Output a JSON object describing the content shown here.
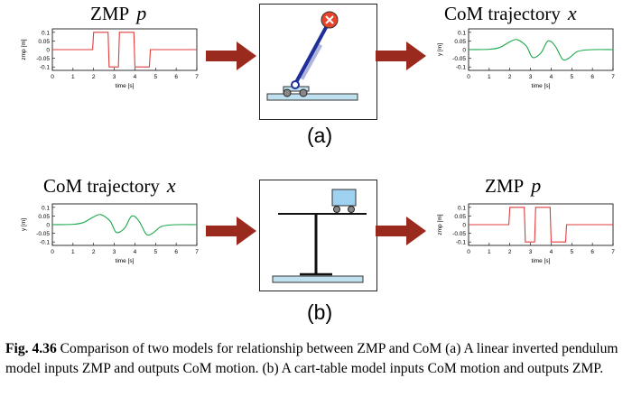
{
  "row_a": {
    "input": {
      "title_text": "ZMP",
      "title_var": "p",
      "ylabel": "zmp [m]",
      "xlabel": "time [s]",
      "color": "#e23b3b",
      "xticks": [
        "0",
        "1",
        "2",
        "3",
        "4",
        "5",
        "6",
        "7"
      ],
      "yticks": [
        "0.1",
        "0.05",
        "0",
        "-0.05",
        "-0.1"
      ]
    },
    "model_icon": "inverted-pendulum-icon",
    "output": {
      "title_text": "CoM trajectory",
      "title_var": "x",
      "ylabel": "y [m]",
      "xlabel": "time [s]",
      "color": "#1aa84a",
      "xticks": [
        "0",
        "1",
        "2",
        "3",
        "4",
        "5",
        "6",
        "7"
      ],
      "yticks": [
        "0.1",
        "0.05",
        "0",
        "-0.05",
        "-0.1"
      ]
    },
    "label": "(a)"
  },
  "row_b": {
    "input": {
      "title_text": "CoM trajectory",
      "title_var": "x",
      "ylabel": "y [m]",
      "xlabel": "time [s]",
      "color": "#1aa84a",
      "xticks": [
        "0",
        "1",
        "2",
        "3",
        "4",
        "5",
        "6",
        "7"
      ],
      "yticks": [
        "0.1",
        "0.05",
        "0",
        "-0.05",
        "-0.1"
      ]
    },
    "model_icon": "cart-table-icon",
    "output": {
      "title_text": "ZMP",
      "title_var": "p",
      "ylabel": "zmp [m]",
      "xlabel": "time [s]",
      "color": "#e23b3b",
      "xticks": [
        "0",
        "1",
        "2",
        "3",
        "4",
        "5",
        "6",
        "7"
      ],
      "yticks": [
        "0.1",
        "0.05",
        "0",
        "-0.05",
        "-0.1"
      ]
    },
    "label": "(b)"
  },
  "caption": {
    "fig_label": "Fig. 4.36",
    "text": "Comparison of two models for relationship between ZMP and CoM (a) A linear inverted pendulum model inputs ZMP and outputs CoM motion. (b) A cart-table model inputs CoM motion and outputs ZMP."
  },
  "colors": {
    "arrow": "#9b2a1e",
    "platform": "#bfe0ef",
    "pendulum": "#1f2f9a",
    "cart": "#9fd2f0",
    "mass": "#e8442c"
  },
  "chart_data": [
    {
      "type": "line",
      "name": "zmp-a",
      "x": [
        0,
        1.95,
        2.0,
        2.7,
        2.75,
        3.2,
        3.25,
        3.95,
        4.0,
        4.7,
        4.75,
        7
      ],
      "y": [
        0,
        0,
        0.1,
        0.1,
        -0.1,
        -0.1,
        0.1,
        0.1,
        -0.1,
        -0.1,
        0,
        0
      ],
      "xlim": [
        0,
        7
      ],
      "ylim": [
        -0.12,
        0.12
      ]
    },
    {
      "type": "line",
      "name": "com-a",
      "x": [
        0,
        1,
        1.5,
        2.0,
        2.35,
        2.8,
        3.1,
        3.5,
        3.85,
        4.2,
        4.55,
        4.85,
        5.3,
        6,
        7
      ],
      "y": [
        0,
        0.002,
        0.012,
        0.045,
        0.058,
        0.02,
        -0.045,
        -0.02,
        0.05,
        0.02,
        -0.055,
        -0.05,
        -0.01,
        0,
        0
      ],
      "xlim": [
        0,
        7
      ],
      "ylim": [
        -0.12,
        0.12
      ]
    },
    {
      "type": "line",
      "name": "com-b",
      "x": [
        0,
        1,
        1.5,
        2.0,
        2.35,
        2.8,
        3.1,
        3.5,
        3.85,
        4.2,
        4.55,
        4.85,
        5.3,
        6,
        7
      ],
      "y": [
        0,
        0.002,
        0.012,
        0.045,
        0.058,
        0.02,
        -0.045,
        -0.02,
        0.05,
        0.02,
        -0.055,
        -0.05,
        -0.01,
        0,
        0
      ],
      "xlim": [
        0,
        7
      ],
      "ylim": [
        -0.12,
        0.12
      ]
    },
    {
      "type": "line",
      "name": "zmp-b",
      "x": [
        0,
        1.95,
        2.0,
        2.7,
        2.75,
        3.2,
        3.25,
        3.95,
        4.0,
        4.7,
        4.75,
        7
      ],
      "y": [
        0,
        0,
        0.1,
        0.1,
        -0.1,
        -0.1,
        0.1,
        0.1,
        -0.1,
        -0.1,
        0,
        0
      ],
      "xlim": [
        0,
        7
      ],
      "ylim": [
        -0.12,
        0.12
      ]
    }
  ]
}
